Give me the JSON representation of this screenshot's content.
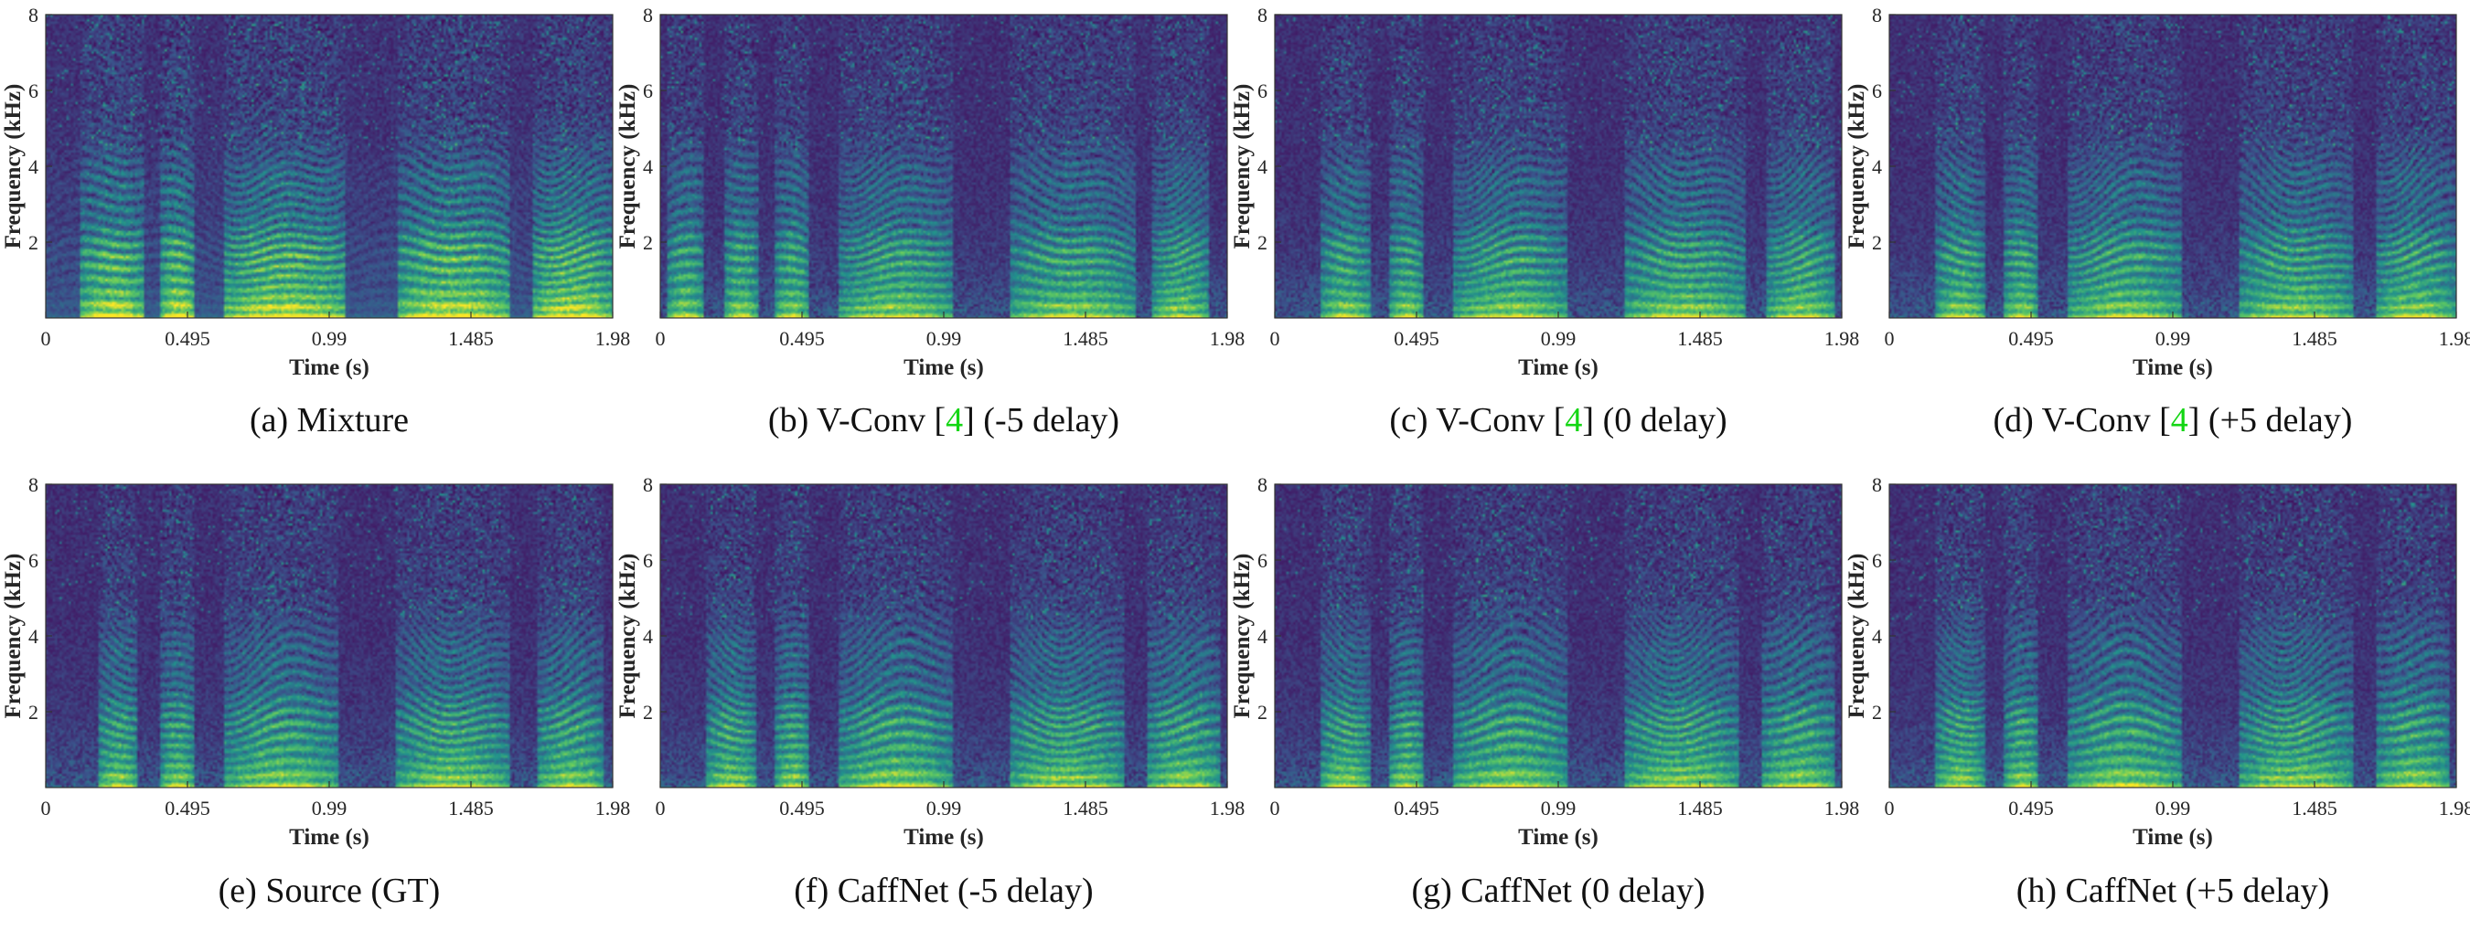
{
  "figure": {
    "panel_count": 8,
    "cite_color": "#14d614",
    "colormap": "viridis",
    "colormap_stops": [
      "#440154",
      "#3b528b",
      "#21918c",
      "#5ec962",
      "#fde725"
    ]
  },
  "chart_data": [
    {
      "type": "heatmap",
      "id": "a",
      "caption": {
        "prefix": "(a) Mixture",
        "cite": "",
        "suffix": ""
      },
      "xlabel": "Time (s)",
      "ylabel": "Frequency (kHz)",
      "xticks": [
        "0",
        "0.495",
        "0.99",
        "1.485",
        "1.98"
      ],
      "yticks": [
        "2",
        "4",
        "6",
        "8"
      ],
      "xlim": [
        0,
        1.98
      ],
      "ylim": [
        0,
        8
      ],
      "voiced_segments": [
        [
          0.12,
          0.34
        ],
        [
          0.4,
          0.52
        ],
        [
          0.62,
          1.05
        ],
        [
          1.23,
          1.62
        ],
        [
          1.7,
          1.98
        ]
      ],
      "energy_bias": "strong"
    },
    {
      "type": "heatmap",
      "id": "b",
      "caption": {
        "prefix": "(b) V-Conv [",
        "cite": "4",
        "suffix": "] (-5 delay)"
      },
      "xlabel": "Time (s)",
      "ylabel": "Frequency (kHz)",
      "xticks": [
        "0",
        "0.495",
        "0.99",
        "1.485",
        "1.98"
      ],
      "yticks": [
        "2",
        "4",
        "6",
        "8"
      ],
      "xlim": [
        0,
        1.98
      ],
      "ylim": [
        0,
        8
      ],
      "voiced_segments": [
        [
          0.02,
          0.15
        ],
        [
          0.22,
          0.34
        ],
        [
          0.4,
          0.52
        ],
        [
          0.62,
          1.02
        ],
        [
          1.22,
          1.66
        ],
        [
          1.72,
          1.92
        ]
      ],
      "energy_bias": "medium"
    },
    {
      "type": "heatmap",
      "id": "c",
      "caption": {
        "prefix": "(c) V-Conv [",
        "cite": "4",
        "suffix": "] (0 delay)"
      },
      "xlabel": "Time (s)",
      "ylabel": "Frequency (kHz)",
      "xticks": [
        "0",
        "0.495",
        "0.99",
        "1.485",
        "1.98"
      ],
      "yticks": [
        "2",
        "4",
        "6",
        "8"
      ],
      "xlim": [
        0,
        1.98
      ],
      "ylim": [
        0,
        8
      ],
      "voiced_segments": [
        [
          0.16,
          0.33
        ],
        [
          0.4,
          0.52
        ],
        [
          0.62,
          1.02
        ],
        [
          1.22,
          1.65
        ],
        [
          1.72,
          1.96
        ]
      ],
      "energy_bias": "medium"
    },
    {
      "type": "heatmap",
      "id": "d",
      "caption": {
        "prefix": "(d) V-Conv [",
        "cite": "4",
        "suffix": "] (+5 delay)"
      },
      "xlabel": "Time (s)",
      "ylabel": "Frequency (kHz)",
      "xticks": [
        "0",
        "0.495",
        "0.99",
        "1.485",
        "1.98"
      ],
      "yticks": [
        "2",
        "4",
        "6",
        "8"
      ],
      "xlim": [
        0,
        1.98
      ],
      "ylim": [
        0,
        8
      ],
      "voiced_segments": [
        [
          0.16,
          0.33
        ],
        [
          0.4,
          0.52
        ],
        [
          0.62,
          1.02
        ],
        [
          1.22,
          1.62
        ],
        [
          1.7,
          1.98
        ]
      ],
      "energy_bias": "medium"
    },
    {
      "type": "heatmap",
      "id": "e",
      "caption": {
        "prefix": "(e) Source (GT)",
        "cite": "",
        "suffix": ""
      },
      "xlabel": "Time (s)",
      "ylabel": "Frequency (kHz)",
      "xticks": [
        "0",
        "0.495",
        "0.99",
        "1.485",
        "1.98"
      ],
      "yticks": [
        "2",
        "4",
        "6",
        "8"
      ],
      "xlim": [
        0,
        1.98
      ],
      "ylim": [
        0,
        8
      ],
      "voiced_segments": [
        [
          0.18,
          0.32
        ],
        [
          0.4,
          0.52
        ],
        [
          0.62,
          1.02
        ],
        [
          1.22,
          1.62
        ],
        [
          1.72,
          1.95
        ]
      ],
      "energy_bias": "medium"
    },
    {
      "type": "heatmap",
      "id": "f",
      "caption": {
        "prefix": "(f) CaffNet (-5 delay)",
        "cite": "",
        "suffix": ""
      },
      "xlabel": "Time (s)",
      "ylabel": "Frequency (kHz)",
      "xticks": [
        "0",
        "0.495",
        "0.99",
        "1.485",
        "1.98"
      ],
      "yticks": [
        "2",
        "4",
        "6",
        "8"
      ],
      "xlim": [
        0,
        1.98
      ],
      "ylim": [
        0,
        8
      ],
      "voiced_segments": [
        [
          0.16,
          0.33
        ],
        [
          0.4,
          0.52
        ],
        [
          0.62,
          1.02
        ],
        [
          1.22,
          1.62
        ],
        [
          1.7,
          1.96
        ]
      ],
      "energy_bias": "medium"
    },
    {
      "type": "heatmap",
      "id": "g",
      "caption": {
        "prefix": "(g) CaffNet (0 delay)",
        "cite": "",
        "suffix": ""
      },
      "xlabel": "Time (s)",
      "ylabel": "Frequency (kHz)",
      "xticks": [
        "0",
        "0.495",
        "0.99",
        "1.485",
        "1.98"
      ],
      "yticks": [
        "2",
        "4",
        "6",
        "8"
      ],
      "xlim": [
        0,
        1.98
      ],
      "ylim": [
        0,
        8
      ],
      "voiced_segments": [
        [
          0.16,
          0.33
        ],
        [
          0.4,
          0.52
        ],
        [
          0.62,
          1.02
        ],
        [
          1.22,
          1.62
        ],
        [
          1.7,
          1.96
        ]
      ],
      "energy_bias": "medium"
    },
    {
      "type": "heatmap",
      "id": "h",
      "caption": {
        "prefix": "(h) CaffNet (+5 delay)",
        "cite": "",
        "suffix": ""
      },
      "xlabel": "Time (s)",
      "ylabel": "Frequency (kHz)",
      "xticks": [
        "0",
        "0.495",
        "0.99",
        "1.485",
        "1.98"
      ],
      "yticks": [
        "2",
        "4",
        "6",
        "8"
      ],
      "xlim": [
        0,
        1.98
      ],
      "ylim": [
        0,
        8
      ],
      "voiced_segments": [
        [
          0.16,
          0.33
        ],
        [
          0.4,
          0.52
        ],
        [
          0.62,
          1.02
        ],
        [
          1.22,
          1.62
        ],
        [
          1.7,
          1.96
        ]
      ],
      "energy_bias": "medium"
    }
  ]
}
